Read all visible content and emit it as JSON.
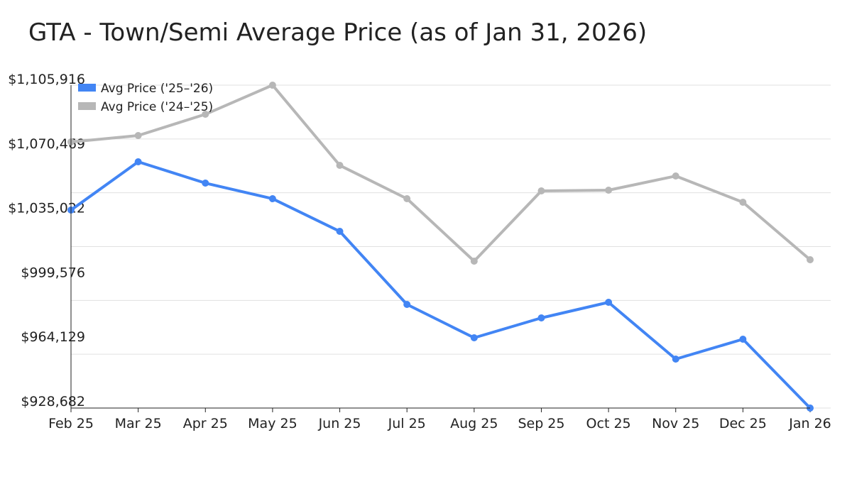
{
  "chart_data": {
    "type": "line",
    "title": "GTA - Town/Semi Average Price (as of Jan 31, 2026)",
    "xlabel": "",
    "ylabel": "",
    "categories": [
      "Feb 25",
      "Mar 25",
      "Apr 25",
      "May 25",
      "Jun 25",
      "Jul 25",
      "Aug 25",
      "Sep 25",
      "Oct 25",
      "Nov 25",
      "Dec 25",
      "Jan 26"
    ],
    "ylim": [
      928682,
      1105916
    ],
    "yticks": [
      "$928,682",
      "$964,129",
      "$999,576",
      "$1,035,022",
      "$1,070,469",
      "$1,105,916"
    ],
    "grid": true,
    "legend_position": "top-left",
    "series": [
      {
        "name": "Avg Price ('25–'26)",
        "color": "#4285f4",
        "values": [
          1037353,
          1063839,
          1052154,
          1043585,
          1025668,
          985549,
          967243,
          978149,
          986718,
          955558,
          966464,
          928682
        ]
      },
      {
        "name": "Avg Price ('24–'25)",
        "color": "#b7b7b7",
        "values": [
          1074745,
          1078250,
          1089935,
          1105916,
          1061891,
          1043585,
          1009309,
          1047869,
          1048259,
          1056049,
          1041637,
          1010088
        ]
      }
    ]
  }
}
